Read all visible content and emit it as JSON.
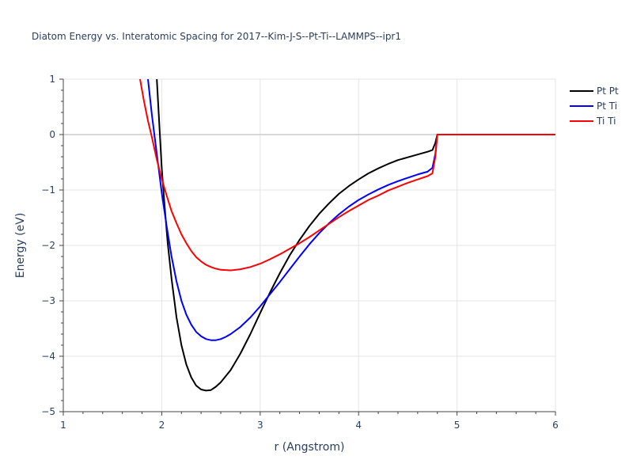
{
  "chart_data": {
    "type": "line",
    "title": "Diatom Energy vs. Interatomic Spacing for 2017--Kim-J-S--Pt-Ti--LAMMPS--ipr1",
    "xlabel": "r (Angstrom)",
    "ylabel": "Energy (eV)",
    "xlim": [
      1,
      6
    ],
    "ylim": [
      -5,
      1
    ],
    "x_ticks": [
      "1",
      "2",
      "3",
      "4",
      "5",
      "6"
    ],
    "y_ticks": [
      "−5",
      "−4",
      "−3",
      "−2",
      "−1",
      "0",
      "1"
    ],
    "grid": true,
    "legend_position": "top-right",
    "series": [
      {
        "name": "Pt Pt",
        "color": "#000000",
        "x": [
          1.95,
          1.97,
          2.0,
          2.03,
          2.06,
          2.1,
          2.15,
          2.2,
          2.25,
          2.3,
          2.35,
          2.4,
          2.45,
          2.5,
          2.55,
          2.6,
          2.7,
          2.8,
          2.9,
          3.0,
          3.1,
          3.2,
          3.3,
          3.4,
          3.5,
          3.6,
          3.7,
          3.8,
          3.9,
          4.0,
          4.1,
          4.2,
          4.3,
          4.4,
          4.5,
          4.6,
          4.7,
          4.75,
          4.78,
          4.8,
          4.85,
          5.0,
          5.5,
          6.0
        ],
        "y": [
          1.0,
          0.35,
          -0.6,
          -1.3,
          -1.95,
          -2.6,
          -3.3,
          -3.8,
          -4.15,
          -4.38,
          -4.53,
          -4.6,
          -4.62,
          -4.61,
          -4.55,
          -4.47,
          -4.25,
          -3.95,
          -3.6,
          -3.22,
          -2.85,
          -2.5,
          -2.18,
          -1.9,
          -1.65,
          -1.43,
          -1.24,
          -1.07,
          -0.93,
          -0.81,
          -0.7,
          -0.61,
          -0.53,
          -0.46,
          -0.41,
          -0.36,
          -0.31,
          -0.28,
          -0.15,
          0.0,
          0.0,
          0.0,
          0.0,
          0.0
        ]
      },
      {
        "name": "Pt Ti",
        "color": "#0000ff",
        "x": [
          1.86,
          1.9,
          1.95,
          2.0,
          2.05,
          2.1,
          2.15,
          2.2,
          2.25,
          2.3,
          2.35,
          2.4,
          2.45,
          2.5,
          2.55,
          2.6,
          2.65,
          2.7,
          2.8,
          2.9,
          3.0,
          3.1,
          3.2,
          3.3,
          3.4,
          3.5,
          3.6,
          3.7,
          3.8,
          3.9,
          4.0,
          4.1,
          4.2,
          4.3,
          4.4,
          4.5,
          4.6,
          4.7,
          4.75,
          4.78,
          4.8,
          4.85,
          5.0,
          5.5,
          6.0
        ],
        "y": [
          1.0,
          0.35,
          -0.35,
          -1.05,
          -1.65,
          -2.2,
          -2.65,
          -3.0,
          -3.25,
          -3.43,
          -3.56,
          -3.64,
          -3.69,
          -3.71,
          -3.71,
          -3.69,
          -3.65,
          -3.6,
          -3.47,
          -3.3,
          -3.1,
          -2.88,
          -2.66,
          -2.43,
          -2.2,
          -1.98,
          -1.78,
          -1.6,
          -1.44,
          -1.3,
          -1.18,
          -1.08,
          -0.99,
          -0.91,
          -0.84,
          -0.78,
          -0.72,
          -0.67,
          -0.6,
          -0.35,
          0.0,
          0.0,
          0.0,
          0.0,
          0.0
        ]
      },
      {
        "name": "Ti Ti",
        "color": "#ff0000",
        "x": [
          1.78,
          1.82,
          1.86,
          1.9,
          1.95,
          2.0,
          2.05,
          2.1,
          2.15,
          2.2,
          2.25,
          2.3,
          2.35,
          2.4,
          2.45,
          2.5,
          2.55,
          2.6,
          2.7,
          2.8,
          2.9,
          3.0,
          3.1,
          3.2,
          3.3,
          3.4,
          3.5,
          3.6,
          3.7,
          3.8,
          3.9,
          4.0,
          4.1,
          4.2,
          4.3,
          4.4,
          4.5,
          4.6,
          4.7,
          4.75,
          4.78,
          4.8,
          4.85,
          5.0,
          5.5,
          6.0
        ],
        "y": [
          1.0,
          0.6,
          0.25,
          -0.05,
          -0.45,
          -0.8,
          -1.1,
          -1.38,
          -1.6,
          -1.8,
          -1.96,
          -2.1,
          -2.21,
          -2.29,
          -2.35,
          -2.39,
          -2.42,
          -2.44,
          -2.45,
          -2.43,
          -2.39,
          -2.33,
          -2.25,
          -2.16,
          -2.06,
          -1.96,
          -1.85,
          -1.73,
          -1.61,
          -1.49,
          -1.38,
          -1.28,
          -1.18,
          -1.1,
          -1.01,
          -0.94,
          -0.87,
          -0.81,
          -0.75,
          -0.7,
          -0.4,
          0.0,
          0.0,
          0.0,
          0.0,
          0.0
        ]
      }
    ]
  }
}
